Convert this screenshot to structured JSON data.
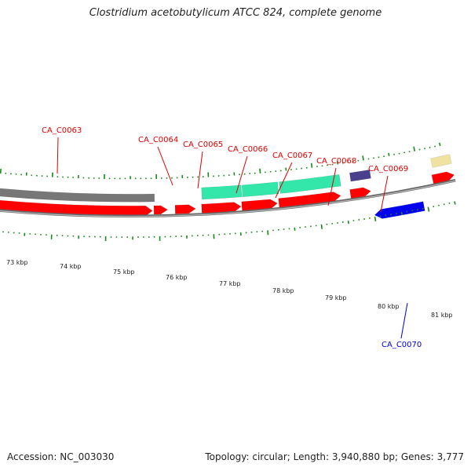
{
  "title": "Clostridium acetobutylicum ATCC 824, complete genome",
  "accession": "Accession: NC_003030",
  "summary": "Topology: circular; Length: 3,940,880 bp; Genes: 3,777",
  "colors": {
    "forward_cds": "#ff0000",
    "reverse_cds": "#0000ee",
    "gene_label_forward": "#dd0000",
    "gene_label_reverse": "#0000dd",
    "tick": "#1a8a1a",
    "backbone": "#808080",
    "feature_gray": "#777777",
    "feature_teal": "#33e6aa",
    "feature_purple": "#4a3f8c",
    "feature_khaki": "#f0e2a0"
  },
  "scale_labels": [
    "73 kbp",
    "74 kbp",
    "75 kbp",
    "76 kbp",
    "77 kbp",
    "78 kbp",
    "79 kbp",
    "80 kbp",
    "81 kbp"
  ],
  "gene_labels": [
    {
      "name": "CA_C0063",
      "strand": "forward"
    },
    {
      "name": "CA_C0064",
      "strand": "forward"
    },
    {
      "name": "CA_C0065",
      "strand": "forward"
    },
    {
      "name": "CA_C0066",
      "strand": "forward"
    },
    {
      "name": "CA_C0067",
      "strand": "forward"
    },
    {
      "name": "CA_C0068",
      "strand": "forward"
    },
    {
      "name": "CA_C0069",
      "strand": "forward"
    },
    {
      "name": "CA_C0070",
      "strand": "reverse"
    }
  ]
}
